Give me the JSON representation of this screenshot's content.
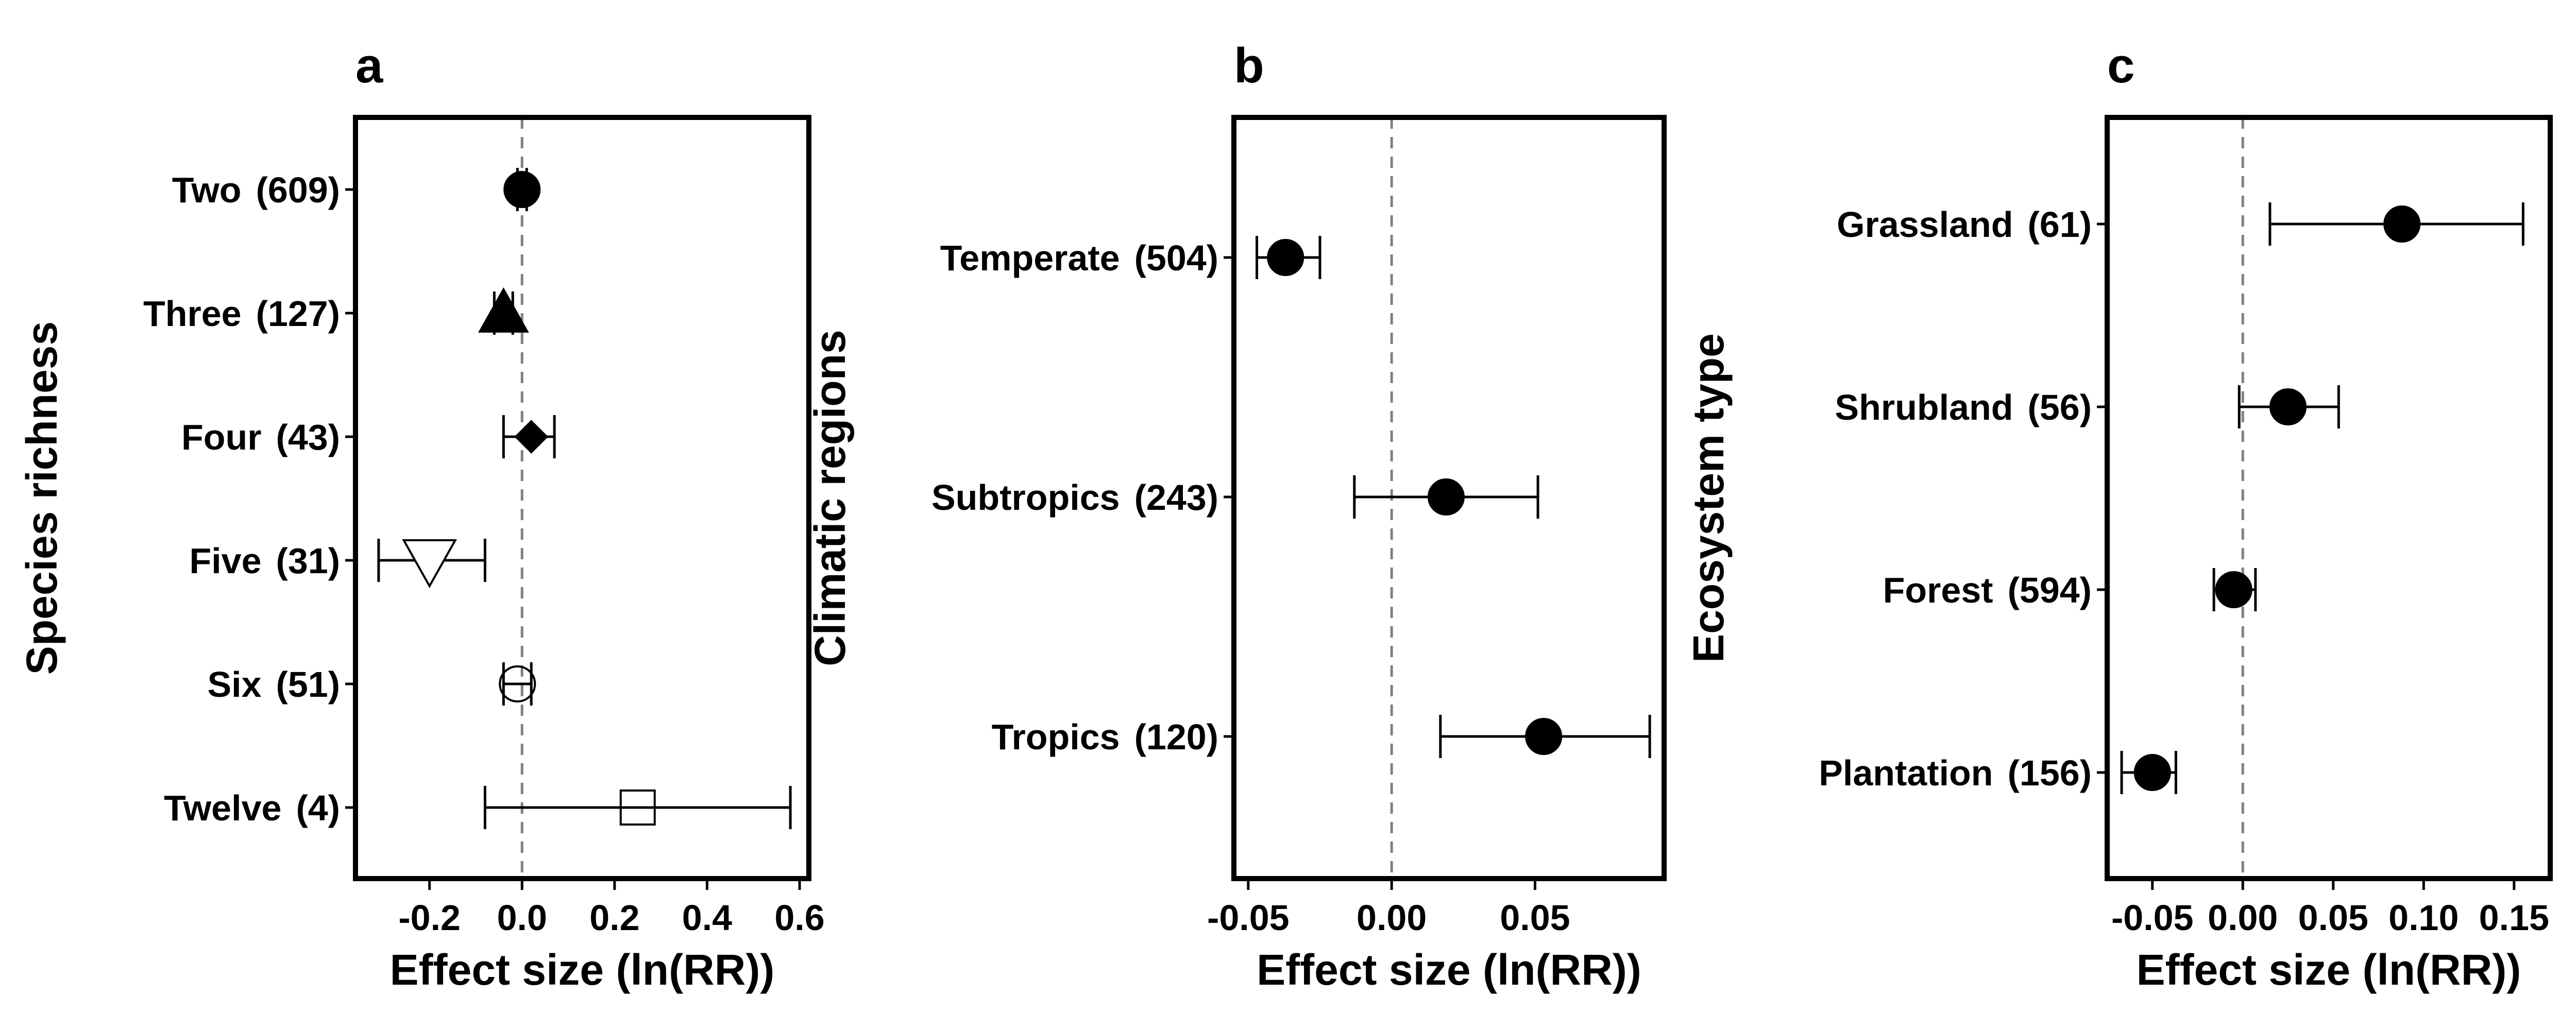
{
  "chart_data": [
    {
      "type": "forest",
      "panel": "a",
      "xlabel": "Effect size (ln(RR))",
      "ylabel": "Species richness",
      "xlim": [
        -0.36,
        0.62
      ],
      "xticks": [
        -0.2,
        0.0,
        0.2,
        0.4,
        0.6
      ],
      "xtick_labels": [
        "-0.2",
        "0.0",
        "0.2",
        "0.4",
        "0.6"
      ],
      "reference_line": 0,
      "rows": [
        {
          "label": "Two",
          "n": "(609)",
          "estimate": 0.0,
          "ci": [
            -0.01,
            0.01
          ],
          "marker": "circle-filled"
        },
        {
          "label": "Three",
          "n": "(127)",
          "estimate": -0.04,
          "ci": [
            -0.06,
            -0.02
          ],
          "marker": "triangle-filled"
        },
        {
          "label": "Four",
          "n": "(43)",
          "estimate": 0.02,
          "ci": [
            -0.04,
            0.07
          ],
          "marker": "diamond-filled"
        },
        {
          "label": "Five",
          "n": "(31)",
          "estimate": -0.2,
          "ci": [
            -0.31,
            -0.08
          ],
          "marker": "triangle-down-open"
        },
        {
          "label": "Six",
          "n": "(51)",
          "estimate": -0.01,
          "ci": [
            -0.04,
            0.02
          ],
          "marker": "circle-open"
        },
        {
          "label": "Twelve",
          "n": "(4)",
          "estimate": 0.25,
          "ci": [
            -0.08,
            0.58
          ],
          "marker": "square-open"
        }
      ]
    },
    {
      "type": "forest",
      "panel": "b",
      "xlabel": "Effect size (ln(RR))",
      "ylabel": "Climatic regions",
      "xlim": [
        -0.055,
        0.095
      ],
      "xticks": [
        -0.05,
        0.0,
        0.05
      ],
      "xtick_labels": [
        "-0.05",
        "0.00",
        "0.05"
      ],
      "reference_line": 0,
      "rows": [
        {
          "label": "Temperate",
          "n": "(504)",
          "estimate": -0.037,
          "ci": [
            -0.047,
            -0.025
          ],
          "marker": "circle-filled"
        },
        {
          "label": "Subtropics",
          "n": "(243)",
          "estimate": 0.019,
          "ci": [
            -0.013,
            0.051
          ],
          "marker": "circle-filled"
        },
        {
          "label": "Tropics",
          "n": "(120)",
          "estimate": 0.053,
          "ci": [
            0.017,
            0.09
          ],
          "marker": "circle-filled"
        }
      ]
    },
    {
      "type": "forest",
      "panel": "c",
      "xlabel": "Effect size (ln(RR))",
      "ylabel": "Ecosystem type",
      "xlim": [
        -0.075,
        0.17
      ],
      "xticks": [
        -0.05,
        0.0,
        0.05,
        0.1,
        0.15
      ],
      "xtick_labels": [
        "-0.05",
        "0.00",
        "0.05",
        "0.10",
        "0.15"
      ],
      "reference_line": 0,
      "rows": [
        {
          "label": "Grassland",
          "n": "(61)",
          "estimate": 0.088,
          "ci": [
            0.015,
            0.155
          ],
          "marker": "circle-filled"
        },
        {
          "label": "Shrubland",
          "n": "(56)",
          "estimate": 0.025,
          "ci": [
            -0.002,
            0.053
          ],
          "marker": "circle-filled"
        },
        {
          "label": "Forest",
          "n": "(594)",
          "estimate": -0.005,
          "ci": [
            -0.016,
            0.007
          ],
          "marker": "circle-filled"
        },
        {
          "label": "Plantation",
          "n": "(156)",
          "estimate": -0.05,
          "ci": [
            -0.067,
            -0.037
          ],
          "marker": "circle-filled"
        }
      ]
    }
  ]
}
